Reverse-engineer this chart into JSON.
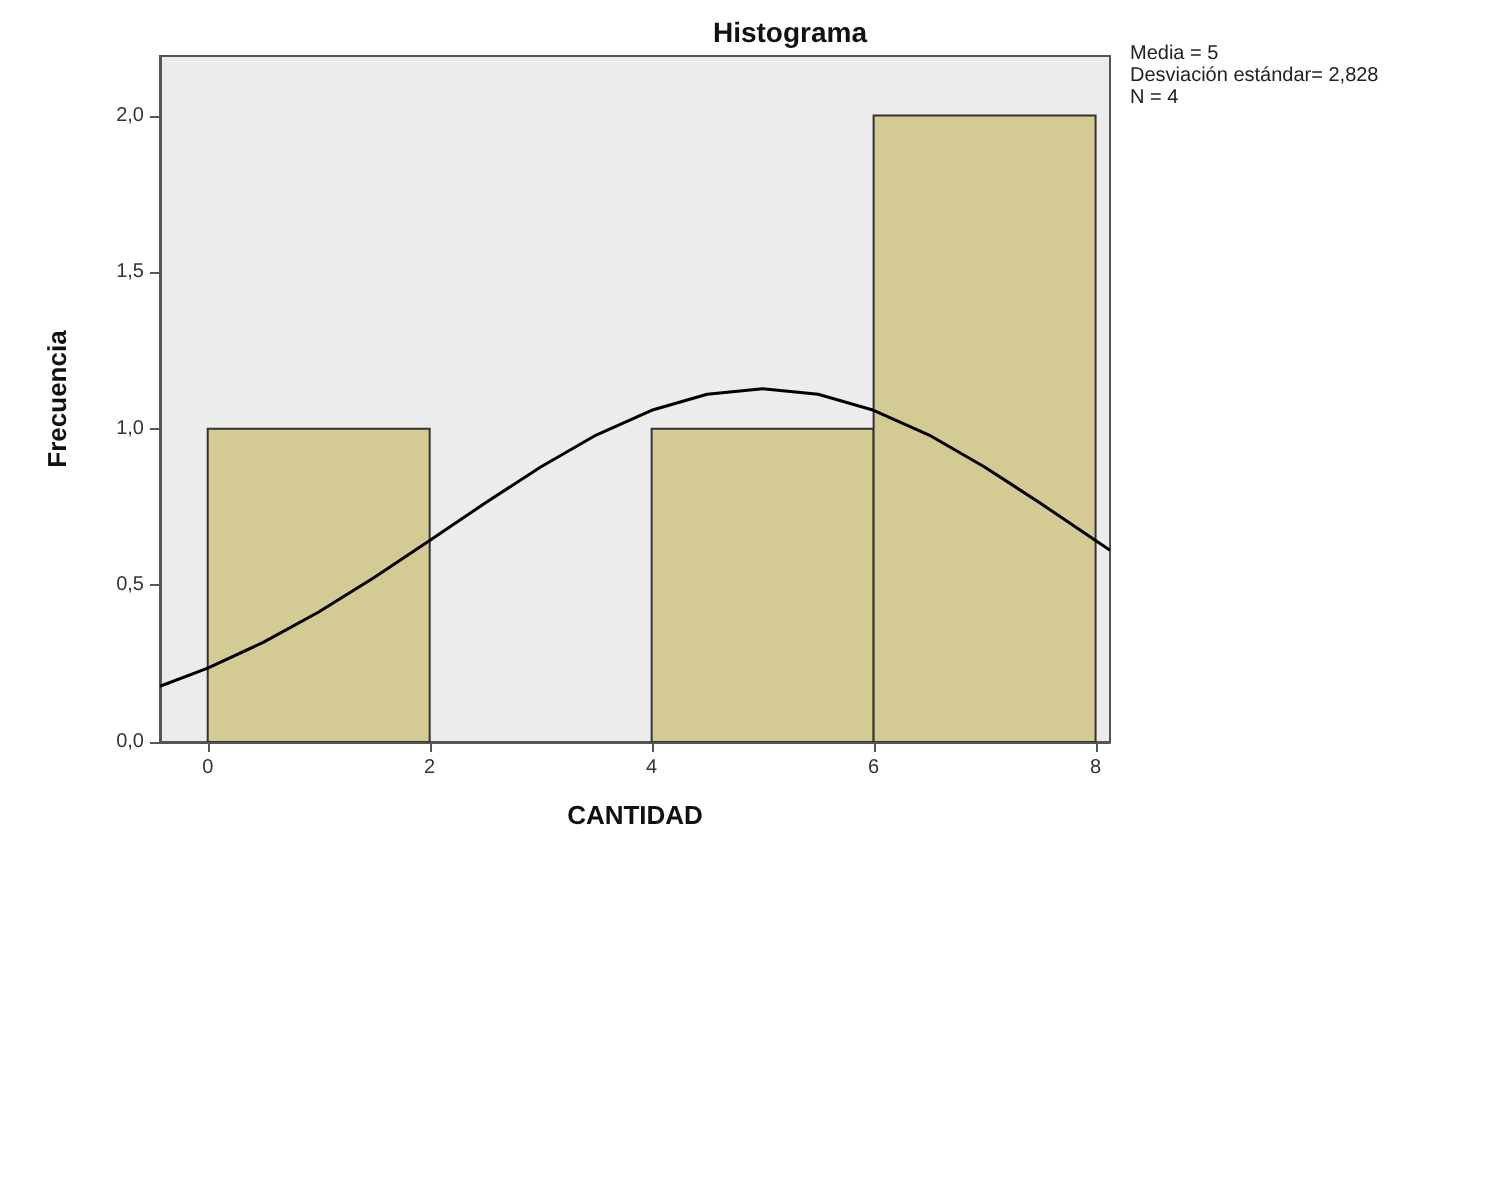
{
  "chart_data": {
    "type": "histogram",
    "title": "Histograma",
    "xlabel": "CANTIDAD",
    "ylabel": "Frecuencia",
    "bins": [
      0,
      2,
      4,
      6,
      8
    ],
    "values": [
      1,
      0,
      1,
      2
    ],
    "color": "#d3cb93",
    "series": [
      {
        "type": "line",
        "color": "#000000",
        "marker": "none",
        "x": [
          -0.43,
          0,
          0.5,
          1,
          1.5,
          2,
          2.5,
          3,
          3.5,
          4,
          4.5,
          5,
          5.5,
          6,
          6.5,
          7,
          7.5,
          8,
          8.13
        ],
        "values": [
          0.178,
          0.236,
          0.318,
          0.415,
          0.525,
          0.643,
          0.763,
          0.878,
          0.98,
          1.059,
          1.11,
          1.128,
          1.11,
          1.059,
          0.98,
          0.878,
          0.763,
          0.643,
          0.612
        ]
      }
    ],
    "xlim": [
      -0.43,
      8.13
    ],
    "xticks": [
      0,
      2,
      4,
      6,
      8
    ],
    "ylim": [
      0,
      2.19
    ],
    "yticks": [
      {
        "value": 0,
        "label": "0,0"
      },
      {
        "value": 0.5,
        "label": "0,5"
      },
      {
        "value": 1,
        "label": "1,0"
      },
      {
        "value": 1.5,
        "label": "1,5"
      },
      {
        "value": 2,
        "label": "2,0"
      }
    ],
    "annotations": [
      "Media = 5",
      "Desviación estándar= 2,828",
      "N = 4"
    ],
    "grid": false
  }
}
